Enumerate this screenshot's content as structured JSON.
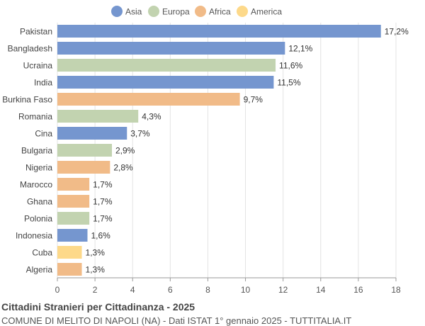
{
  "title": "Cittadini Stranieri per Cittadinanza - 2025",
  "subtitle": "COMUNE DI MELITO DI NAPOLI (NA) - Dati ISTAT 1° gennaio 2025 - TUTTITALIA.IT",
  "chart_data": {
    "type": "bar",
    "orientation": "horizontal",
    "legend": [
      {
        "name": "Asia",
        "color": "#7596cf"
      },
      {
        "name": "Europa",
        "color": "#c2d3b0"
      },
      {
        "name": "Africa",
        "color": "#f1bb88"
      },
      {
        "name": "America",
        "color": "#fdd98a"
      }
    ],
    "legend_placement": "top-center",
    "categories": [
      "Pakistan",
      "Bangladesh",
      "Ucraina",
      "India",
      "Burkina Faso",
      "Romania",
      "Cina",
      "Bulgaria",
      "Nigeria",
      "Marocco",
      "Ghana",
      "Polonia",
      "Indonesia",
      "Cuba",
      "Algeria"
    ],
    "values": [
      17.2,
      12.1,
      11.6,
      11.5,
      9.7,
      4.3,
      3.7,
      2.9,
      2.8,
      1.7,
      1.7,
      1.7,
      1.6,
      1.3,
      1.3
    ],
    "labels": [
      "17,2%",
      "12,1%",
      "11,6%",
      "11,5%",
      "9,7%",
      "4,3%",
      "3,7%",
      "2,9%",
      "2,8%",
      "1,7%",
      "1,7%",
      "1,7%",
      "1,6%",
      "1,3%",
      "1,3%"
    ],
    "groups": [
      "Asia",
      "Asia",
      "Europa",
      "Asia",
      "Africa",
      "Europa",
      "Asia",
      "Europa",
      "Africa",
      "Africa",
      "Africa",
      "Europa",
      "Asia",
      "America",
      "Africa"
    ],
    "xlim": [
      0,
      18
    ],
    "xticks": [
      0,
      2,
      4,
      6,
      8,
      10,
      12,
      14,
      16,
      18
    ],
    "grid": true
  }
}
